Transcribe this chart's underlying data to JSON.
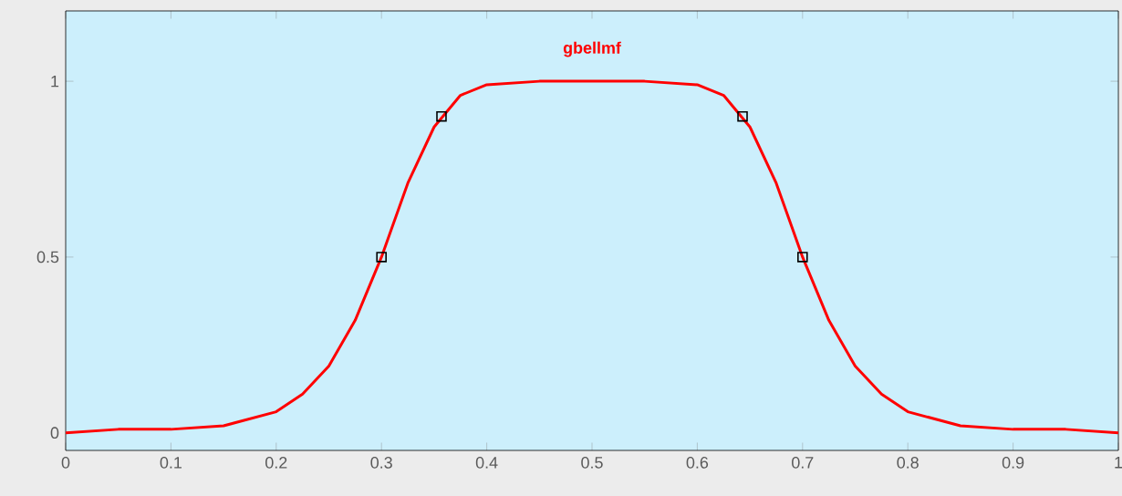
{
  "chart_data": {
    "type": "line",
    "title": "gbellmf",
    "x": [
      0,
      0.05,
      0.1,
      0.15,
      0.2,
      0.225,
      0.25,
      0.275,
      0.3,
      0.325,
      0.35,
      0.375,
      0.4,
      0.45,
      0.5,
      0.55,
      0.6,
      0.625,
      0.65,
      0.675,
      0.7,
      0.725,
      0.75,
      0.775,
      0.8,
      0.85,
      0.9,
      0.95,
      1
    ],
    "series": [
      {
        "color": "#ff0000",
        "values": [
          0,
          0.01,
          0.01,
          0.02,
          0.06,
          0.11,
          0.19,
          0.32,
          0.5,
          0.71,
          0.87,
          0.96,
          0.99,
          1,
          1,
          1,
          0.99,
          0.96,
          0.87,
          0.71,
          0.5,
          0.32,
          0.19,
          0.11,
          0.06,
          0.02,
          0.01,
          0.01,
          0
        ]
      },
      {
        "type": "scatter",
        "color": "#000000",
        "marker": "square",
        "x": [
          0.3,
          0.357,
          0.643,
          0.7
        ],
        "values": [
          0.5,
          0.9,
          0.9,
          0.5
        ]
      }
    ],
    "xlim": [
      0,
      1
    ],
    "ylim": [
      -0.05,
      1.2
    ],
    "xticks": [
      0,
      0.1,
      0.2,
      0.3,
      0.4,
      0.5,
      0.6,
      0.7,
      0.8,
      0.9,
      1
    ],
    "yticks": [
      0,
      0.5,
      1
    ]
  }
}
